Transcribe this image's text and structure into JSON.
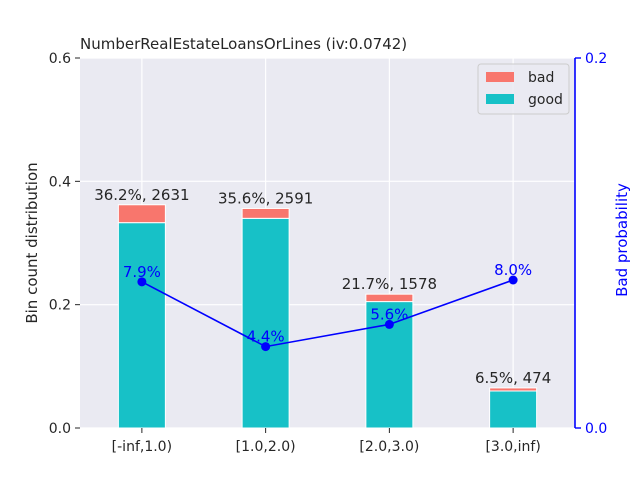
{
  "chart_data": {
    "type": "bar",
    "title": "NumberRealEstateLoansOrLines  (iv:0.0742)",
    "ylabel": "Bin count distribution",
    "y2label": "Bad probability",
    "categories": [
      "[-inf,1.0)",
      "[1.0,2.0)",
      "[2.0,3.0)",
      "[3.0,inf)"
    ],
    "ylim": [
      0,
      0.6
    ],
    "yticks": [
      "0.0",
      "0.2",
      "0.4",
      "0.6"
    ],
    "y2lim": [
      0,
      0.2
    ],
    "y2ticks": [
      "0.0",
      "0.2"
    ],
    "grid": true,
    "legend_position": "top-right",
    "series": [
      {
        "name": "good",
        "values": [
          0.333,
          0.34,
          0.205,
          0.06
        ]
      },
      {
        "name": "bad",
        "values": [
          0.029,
          0.016,
          0.012,
          0.005
        ]
      }
    ],
    "bar_labels": [
      "36.2%, 2631",
      "35.6%, 2591",
      "21.7%, 1578",
      "6.5%, 474"
    ],
    "line": {
      "values": [
        0.079,
        0.044,
        0.056,
        0.08
      ],
      "labels": [
        "7.9%",
        "4.4%",
        "5.6%",
        "8.0%"
      ]
    },
    "colors": {
      "good": "#17c1c7",
      "bad": "#f8766d",
      "line": "#0000ff",
      "plot_bg": "#eaeaf2",
      "grid": "#ffffff",
      "text": "#262626"
    }
  }
}
